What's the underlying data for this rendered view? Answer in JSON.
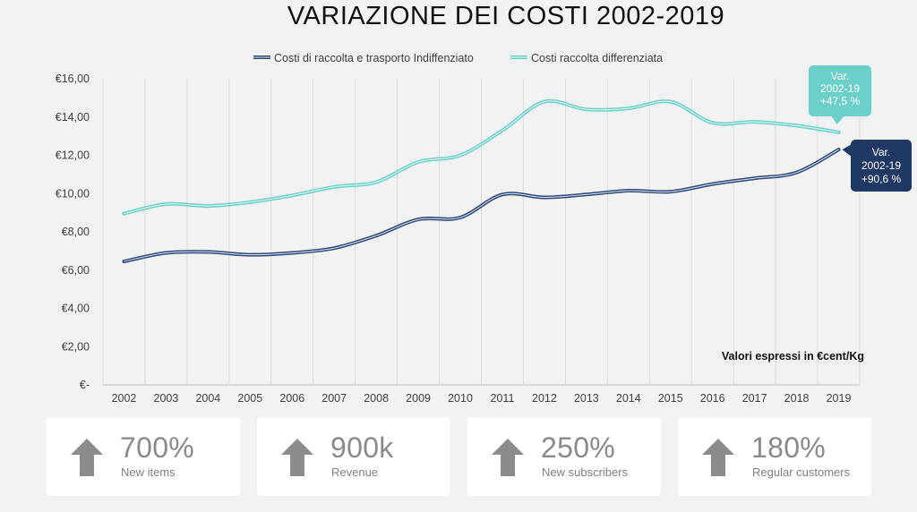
{
  "chart_data": {
    "type": "line",
    "title": "VARIAZIONE DEI COSTI 2002-2019",
    "x": [
      "2002",
      "2003",
      "2004",
      "2005",
      "2006",
      "2007",
      "2008",
      "2009",
      "2010",
      "2011",
      "2012",
      "2013",
      "2014",
      "2015",
      "2016",
      "2017",
      "2018",
      "2019"
    ],
    "series": [
      {
        "name": "Costi di raccolta e trasporto  Indiffenziato",
        "color": "#2e4a7a",
        "values": [
          6.45,
          6.9,
          6.95,
          6.8,
          6.9,
          7.15,
          7.8,
          8.65,
          8.75,
          9.95,
          9.8,
          9.95,
          10.15,
          10.1,
          10.5,
          10.8,
          11.1,
          12.3
        ],
        "callout": [
          "Var.",
          "2002-19",
          "+90,6 %"
        ],
        "callout_color": "#203864"
      },
      {
        "name": "Costi raccolta differenziata",
        "color": "#6dcfca",
        "values": [
          8.95,
          9.45,
          9.35,
          9.55,
          9.9,
          10.35,
          10.6,
          11.65,
          12.0,
          13.3,
          14.8,
          14.4,
          14.45,
          14.8,
          13.7,
          13.75,
          13.55,
          13.2
        ],
        "callout": [
          "Var.",
          "2002-19",
          "+47,5 %"
        ],
        "callout_color": "#6dcfca"
      }
    ],
    "ylim": [
      0,
      16
    ],
    "yticks": [
      0,
      2,
      4,
      6,
      8,
      10,
      12,
      14,
      16
    ],
    "ytick_labels": [
      "€-",
      "€2,00",
      "€4,00",
      "€6,00",
      "€8,00",
      "€10,00",
      "€12,00",
      "€14,00",
      "€16,00"
    ],
    "grid": "vertical",
    "legend": "top",
    "annotation": "Valori espressi in €cent/Kg"
  },
  "cards": [
    {
      "value": "700%",
      "label": "New items",
      "icon": "arrow-up-icon"
    },
    {
      "value": "900k",
      "label": "Revenue",
      "icon": "arrow-up-icon"
    },
    {
      "value": "250%",
      "label": "New subscribers",
      "icon": "arrow-up-icon"
    },
    {
      "value": "180%",
      "label": "Regular customers",
      "icon": "arrow-up-icon"
    }
  ]
}
